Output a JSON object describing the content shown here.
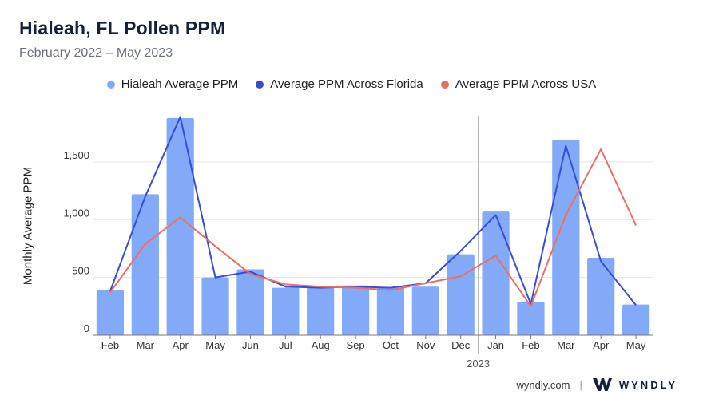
{
  "header": {
    "title": "Hialeah, FL Pollen PPM",
    "subtitle": "February 2022 – May 2023"
  },
  "footer": {
    "site": "wyndly.com",
    "brand": "WYNDLY"
  },
  "colors": {
    "bar": "#82aaf8",
    "florida_line": "#3a4bd6",
    "usa_line": "#ec6f62",
    "grid": "#e4e6ea",
    "axis": "#777777"
  },
  "chart_data": {
    "type": "bar",
    "title": "Hialeah, FL Pollen PPM",
    "subtitle": "February 2022 – May 2023",
    "ylabel": "Monthly Average PPM",
    "ylim": [
      0,
      1900
    ],
    "yticks": [
      0,
      500,
      1000,
      1500
    ],
    "ytick_labels": [
      "0",
      "500",
      "1,000",
      "1,500"
    ],
    "categories": [
      "Feb",
      "Mar",
      "Apr",
      "May",
      "Jun",
      "Jul",
      "Aug",
      "Sep",
      "Oct",
      "Nov",
      "Dec",
      "Jan",
      "Feb",
      "Mar",
      "Apr",
      "May"
    ],
    "year_marker": {
      "label": "2023",
      "before_index": 11
    },
    "legend_position": "top",
    "grid": true,
    "series": [
      {
        "name": "Hialeah Average PPM",
        "kind": "bar",
        "color": "#82aaf8",
        "values": [
          390,
          1220,
          1880,
          500,
          570,
          410,
          410,
          430,
          410,
          420,
          700,
          1070,
          290,
          1690,
          670,
          265
        ]
      },
      {
        "name": "Average PPM Across Florida",
        "kind": "line",
        "color": "#3a4bd6",
        "values": [
          380,
          1200,
          1890,
          500,
          550,
          420,
          410,
          420,
          410,
          450,
          730,
          1040,
          270,
          1640,
          640,
          260
        ]
      },
      {
        "name": "Average PPM Across USA",
        "kind": "line",
        "color": "#ec6f62",
        "values": [
          370,
          790,
          1020,
          770,
          530,
          440,
          420,
          410,
          390,
          450,
          510,
          690,
          250,
          1040,
          1610,
          950
        ]
      }
    ]
  }
}
